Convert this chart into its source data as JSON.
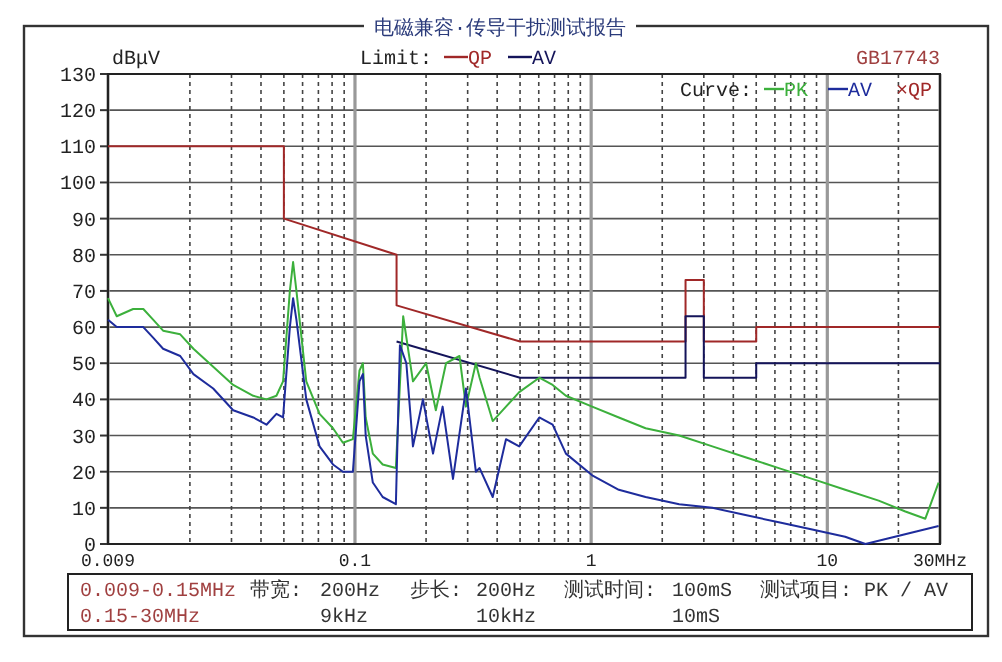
{
  "chart_data": {
    "type": "line",
    "title": "电磁兼容·传导干扰测试报告",
    "subtitle": "GB17743",
    "ylabel": "dBμV",
    "legend_title": "Curve:",
    "log": "x",
    "grid": true,
    "legend": "top",
    "line_style": "solid",
    "xlim": [
      0.009,
      30
    ],
    "ylim": [
      0,
      130
    ],
    "yticks": [
      0,
      10,
      20,
      30,
      40,
      50,
      60,
      70,
      80,
      90,
      100,
      110,
      120,
      130
    ],
    "xticks": [
      {
        "value": 0.009,
        "label": "0.009"
      },
      {
        "value": 0.02,
        "label": null
      },
      {
        "value": 0.03,
        "label": null
      },
      {
        "value": 0.04,
        "label": null
      },
      {
        "value": 0.05,
        "label": null
      },
      {
        "value": 0.06,
        "label": null
      },
      {
        "value": 0.07,
        "label": null
      },
      {
        "value": 0.08,
        "label": null
      },
      {
        "value": 0.09,
        "label": null
      },
      0.1,
      {
        "value": 0.2,
        "label": null
      },
      {
        "value": 0.3,
        "label": null
      },
      {
        "value": 0.4,
        "label": null
      },
      {
        "value": 0.5,
        "label": null
      },
      {
        "value": 0.6,
        "label": null
      },
      {
        "value": 0.7,
        "label": null
      },
      {
        "value": 0.8,
        "label": null
      },
      {
        "value": 0.9,
        "label": null
      },
      1,
      {
        "value": 2,
        "label": null
      },
      {
        "value": 3,
        "label": null
      },
      {
        "value": 4,
        "label": null
      },
      {
        "value": 5,
        "label": null
      },
      {
        "value": 6,
        "label": null
      },
      {
        "value": 7,
        "label": null
      },
      {
        "value": 8,
        "label": null
      },
      {
        "value": 9,
        "label": null
      },
      10,
      {
        "value": 20,
        "label": null
      },
      {
        "value": 30,
        "label": "30MHz"
      }
    ],
    "series": [
      {
        "name": "QP",
        "color": "#a02828",
        "x": [
          0.009,
          0.05,
          0.05,
          0.15,
          0.15,
          0.5,
          2.51,
          2.51,
          3,
          3,
          5,
          5,
          30
        ],
        "values": [
          110,
          110,
          90,
          80,
          66,
          56,
          56,
          73,
          73,
          56,
          56,
          60,
          60
        ]
      },
      {
        "name": "AV",
        "color": "#14145a",
        "x": [
          0.15,
          0.5,
          2.51,
          2.51,
          3,
          3,
          5,
          5,
          30
        ],
        "values": [
          56,
          46,
          46,
          63,
          63,
          46,
          46,
          50,
          50
        ]
      },
      {
        "name": "PK",
        "color": "#3cb03c",
        "x": [
          0.009,
          0.0098,
          0.0115,
          0.0127,
          0.014,
          0.0154,
          0.0182,
          0.0207,
          0.0251,
          0.0305,
          0.0371,
          0.0422,
          0.0465,
          0.0496,
          0.053,
          0.0547,
          0.0565,
          0.0622,
          0.0708,
          0.0807,
          0.0889,
          0.098,
          0.1045,
          0.108,
          0.111,
          0.119,
          0.131,
          0.149,
          0.16,
          0.176,
          0.2,
          0.22,
          0.243,
          0.277,
          0.295,
          0.325,
          0.337,
          0.383,
          0.436,
          0.496,
          0.603,
          0.687,
          0.782,
          1.01,
          1.31,
          1.7,
          2.36,
          3.26,
          4.5,
          6.23,
          8.63,
          11.9,
          16.5,
          21.4,
          26,
          29.6
        ],
        "values": [
          68,
          63,
          65,
          65,
          62,
          59,
          58,
          54,
          49,
          44,
          41,
          40,
          41,
          45,
          70,
          78,
          70,
          45,
          36,
          32,
          28,
          29,
          48,
          50,
          35,
          25,
          22,
          21,
          63,
          45,
          50,
          37,
          50,
          52,
          38,
          50,
          46,
          34,
          38,
          42,
          46,
          44,
          41,
          38,
          35,
          32,
          30,
          27,
          24,
          21,
          18,
          15,
          12,
          9,
          7,
          17
        ]
      },
      {
        "name": "AV",
        "color": "#1e2c9c",
        "x": [
          0.009,
          0.0098,
          0.0115,
          0.0127,
          0.014,
          0.0154,
          0.0182,
          0.0207,
          0.0251,
          0.0305,
          0.0371,
          0.0422,
          0.0465,
          0.0496,
          0.053,
          0.0547,
          0.0565,
          0.0622,
          0.0708,
          0.0807,
          0.0889,
          0.098,
          0.1045,
          0.108,
          0.111,
          0.119,
          0.131,
          0.149,
          0.155,
          0.165,
          0.176,
          0.194,
          0.214,
          0.235,
          0.26,
          0.295,
          0.325,
          0.337,
          0.383,
          0.436,
          0.496,
          0.603,
          0.687,
          0.782,
          1.01,
          1.31,
          1.7,
          2.36,
          3.26,
          4.5,
          6.23,
          8.63,
          11.9,
          14.5,
          29.6
        ],
        "values": [
          62,
          60,
          60,
          60,
          57,
          54,
          52,
          47,
          43,
          37,
          35,
          33,
          36,
          35,
          60,
          68,
          62,
          40,
          27,
          22,
          20,
          20,
          45,
          47,
          30,
          17,
          13,
          11,
          55,
          50,
          27,
          40,
          25,
          38,
          18,
          43,
          20,
          21,
          13,
          29,
          27,
          35,
          33,
          25,
          19,
          15,
          13,
          11,
          10,
          8,
          6,
          4,
          2,
          0,
          5
        ]
      }
    ],
    "annotations": [
      "Limit:",
      "×QP",
      "0.009-0.15MHz",
      "带宽:",
      "200Hz",
      "步长:",
      "200Hz",
      "测试时间:",
      "100mS",
      "测试项目: PK / AV",
      "0.15-30MHz",
      "9kHz",
      "10kHz",
      "10mS"
    ]
  }
}
